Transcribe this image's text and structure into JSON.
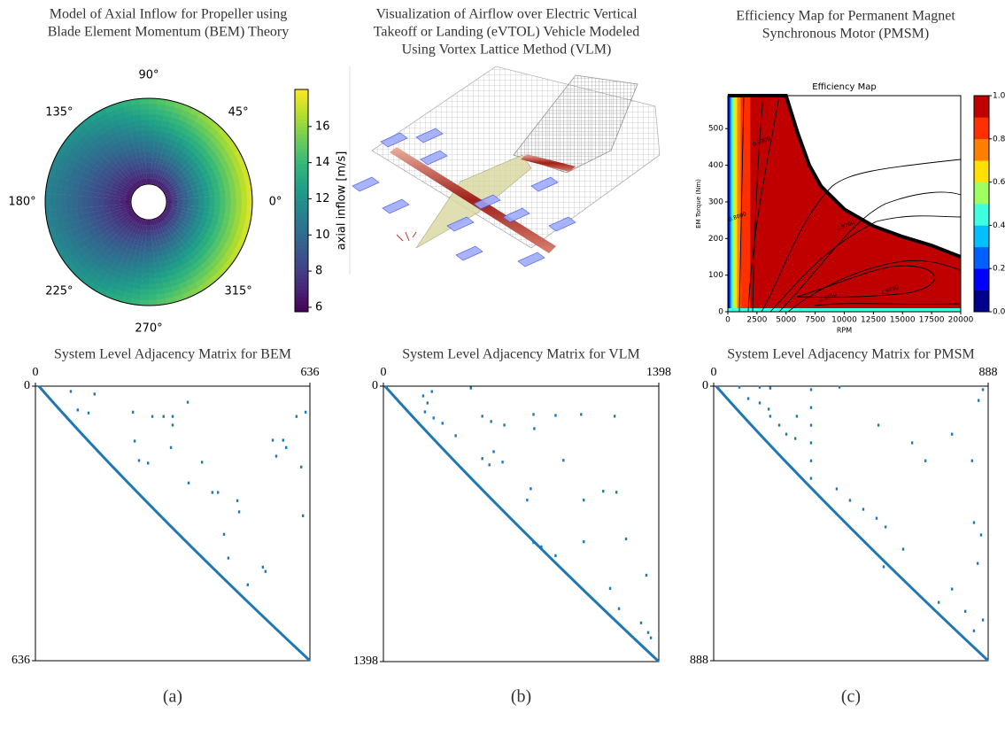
{
  "chart_data": [
    {
      "type": "polar-heatmap",
      "title": [
        "Model of Axial Inflow for Propeller using",
        "Blade Element Momentum (BEM) Theory"
      ],
      "angle_ticks": [
        {
          "value": 0,
          "label": "0°"
        },
        {
          "value": 45,
          "label": "45°"
        },
        {
          "value": 90,
          "label": "90°"
        },
        {
          "value": 135,
          "label": "135°"
        },
        {
          "value": 180,
          "label": "180°"
        },
        {
          "value": 225,
          "label": "225°"
        },
        {
          "value": 270,
          "label": "270°"
        },
        {
          "value": 315,
          "label": "315°"
        }
      ],
      "colorbar_label": "axial inflow [m/s]",
      "clim": [
        5.75,
        18.05
      ],
      "cticks": [
        6,
        8,
        10,
        12,
        14,
        16
      ],
      "colormap": "viridis"
    },
    {
      "type": "image",
      "title": [
        "Visualization of Airflow over Electric Vertical",
        "Takeoff or Landing (eVTOL) Vehicle Modeled",
        "Using Vortex Lattice Method (VLM)"
      ]
    },
    {
      "type": "contour",
      "title": [
        "Efficiency Map for Permanent Magnet",
        "Synchronous Motor (PMSM)"
      ],
      "subtitle": "Efficiency Map",
      "xlabel": "RPM",
      "ylabel": "EM Torque (Nm)",
      "xlim": [
        0,
        20000
      ],
      "xticks": [
        0,
        2500,
        5000,
        7500,
        10000,
        12500,
        15000,
        17500,
        20000
      ],
      "ylim": [
        0,
        590
      ],
      "yticks": [
        0,
        100,
        200,
        300,
        400,
        500
      ],
      "clim": [
        0,
        1
      ],
      "cticks": [
        {
          "value": 0,
          "label": "0.0"
        },
        {
          "value": 0.2,
          "label": "0.2"
        },
        {
          "value": 0.4,
          "label": "0.4"
        },
        {
          "value": 0.6,
          "label": "0.6"
        },
        {
          "value": 0.8,
          "label": "0.8"
        },
        {
          "value": 1,
          "label": "1.0"
        }
      ],
      "level_colors": [
        "#00008f",
        "#0000ff",
        "#0060ff",
        "#00c0ff",
        "#40ffe0",
        "#a0ff60",
        "#ffe000",
        "#ff8000",
        "#ff3000",
        "#c00000"
      ],
      "contour_labels": [
        "0.8000",
        "0.9300",
        "0.9700",
        "0.9730",
        "0.9750"
      ],
      "max_torque": {
        "rpm": [
          0,
          5000,
          6000,
          7000,
          8000,
          10000,
          12500,
          15000,
          17500,
          20000
        ],
        "torque": [
          590,
          590,
          488,
          400,
          343,
          280,
          234,
          205,
          181,
          150
        ]
      }
    },
    {
      "type": "spy",
      "title": "System Level Adjacency Matrix for BEM",
      "size": 636,
      "xticks": [
        0,
        636
      ],
      "yticks": [
        0,
        636
      ],
      "color": "#1f77b4",
      "caption": "(a)",
      "rows": [
        12,
        18,
        55,
        62,
        60,
        70,
        70,
        70,
        37,
        90,
        127,
        172,
        176,
        178,
        142,
        246,
        246,
        265,
        291,
        343,
        398,
        419,
        429,
        125,
        125,
        70,
        60,
        142,
        187,
        162,
        300,
        460,
        224
      ],
      "cols": [
        82,
        137,
        98,
        123,
        226,
        271,
        297,
        318,
        353,
        318,
        230,
        240,
        386,
        261,
        314,
        410,
        423,
        468,
        472,
        437,
        447,
        527,
        533,
        550,
        574,
        605,
        626,
        581,
        616,
        558,
        620,
        492,
        355
      ]
    },
    {
      "type": "spy",
      "title": "System Level Adjacency Matrix for VLM",
      "size": 1398,
      "xticks": [
        0,
        1398
      ],
      "yticks": [
        0,
        1398
      ],
      "color": "#1f77b4",
      "caption": "(b)",
      "rows": [
        49,
        85,
        27,
        9,
        130,
        161,
        188,
        251,
        152,
        179,
        197,
        143,
        215,
        148,
        143,
        152,
        367,
        399,
        332,
        385,
        520,
        376,
        578,
        533,
        538,
        793,
        815,
        860,
        789,
        775,
        1026,
        1129,
        959,
        1201,
        1250,
        1277,
        578
      ],
      "cols": [
        202,
        224,
        246,
        444,
        211,
        255,
        300,
        367,
        502,
        547,
        614,
        762,
        766,
        874,
        1004,
        1174,
        502,
        538,
        560,
        605,
        748,
        914,
        1017,
        1116,
        1183,
        762,
        802,
        874,
        1017,
        1232,
        1151,
        1196,
        1335,
        1308,
        1344,
        1358,
        730
      ]
    },
    {
      "type": "spy",
      "title": "System Level Adjacency Matrix for PMSM",
      "size": 888,
      "xticks": [
        0,
        888
      ],
      "yticks": [
        0,
        888
      ],
      "color": "#1f77b4",
      "caption": "(c)",
      "rows": [
        3,
        3,
        6,
        3,
        40,
        54,
        97,
        126,
        155,
        169,
        74,
        97,
        11,
        69,
        126,
        183,
        241,
        298,
        332,
        369,
        398,
        427,
        455,
        584,
        527,
        183,
        241,
        126,
        155,
        241,
        46,
        11,
        441,
        656,
        728,
        791,
        756,
        699,
        573,
        481
      ],
      "cols": [
        83,
        149,
        183,
        407,
        112,
        149,
        183,
        212,
        235,
        264,
        178,
        269,
        315,
        315,
        315,
        315,
        315,
        315,
        398,
        441,
        484,
        527,
        556,
        550,
        613,
        642,
        685,
        533,
        771,
        836,
        857,
        871,
        842,
        771,
        814,
        842,
        871,
        728,
        854,
        865
      ]
    }
  ]
}
